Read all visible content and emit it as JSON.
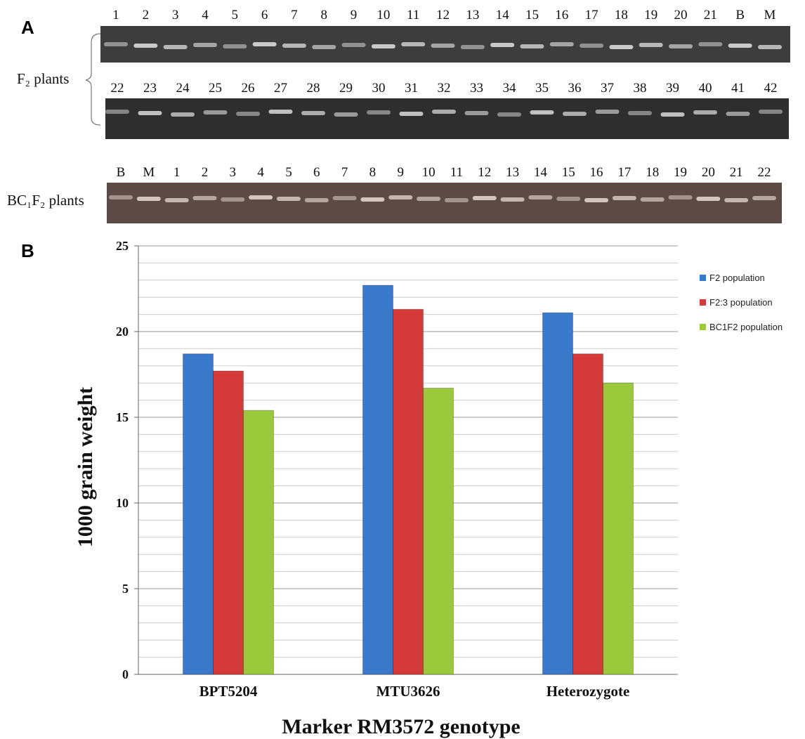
{
  "panels": [
    "A",
    "B"
  ],
  "gel_labels": [
    "F₂ plants",
    "BC₁F₂ plants"
  ],
  "gels": [
    {
      "lanes": [
        "1",
        "2",
        "3",
        "4",
        "5",
        "6",
        "7",
        "8",
        "9",
        "10",
        "11",
        "12",
        "13",
        "14",
        "15",
        "16",
        "17",
        "18",
        "19",
        "20",
        "21",
        "B",
        "M"
      ]
    },
    {
      "lanes": [
        "22",
        "23",
        "24",
        "25",
        "26",
        "27",
        "28",
        "29",
        "30",
        "31",
        "32",
        "33",
        "34",
        "35",
        "36",
        "37",
        "38",
        "39",
        "40",
        "41",
        "42"
      ]
    },
    {
      "lanes": [
        "B",
        "M",
        "1",
        "2",
        "3",
        "4",
        "5",
        "6",
        "7",
        "8",
        "9",
        "10",
        "11",
        "12",
        "13",
        "14",
        "15",
        "16",
        "17",
        "18",
        "19",
        "20",
        "21",
        "22"
      ]
    }
  ],
  "chart_data": {
    "type": "bar",
    "x_label": "Marker RM3572 genotype",
    "y_label": "1000 grain weight",
    "categories": [
      "BPT5204",
      "MTU3626",
      "Heterozygote"
    ],
    "series": [
      {
        "name": "F2 population",
        "color": "#3a78c9",
        "values": [
          18.7,
          22.7,
          21.1
        ]
      },
      {
        "name": "F2:3 population",
        "color": "#d43a3a",
        "values": [
          17.7,
          21.3,
          18.7
        ]
      },
      {
        "name": "BC1F2 population",
        "color": "#9cc83c",
        "values": [
          15.4,
          16.7,
          17.0
        ]
      }
    ],
    "ylim": [
      0,
      25
    ],
    "yticks": [
      0,
      5,
      10,
      15,
      20,
      25
    ],
    "minor_yticks": [
      1,
      2,
      3,
      4,
      6,
      7,
      8,
      9,
      11,
      12,
      13,
      14,
      16,
      17,
      18,
      19,
      21,
      22,
      23,
      24
    ],
    "grid": true,
    "legend": "right"
  }
}
